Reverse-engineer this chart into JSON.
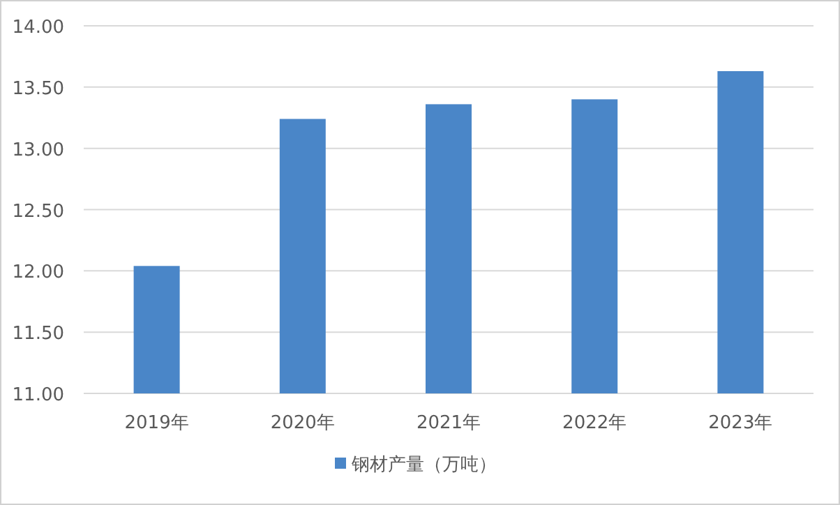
{
  "chart_data": {
    "type": "bar",
    "categories": [
      "2019年",
      "2020年",
      "2021年",
      "2022年",
      "2023年"
    ],
    "series": [
      {
        "name": "钢材产量（万吨）",
        "color": "#4a86c8",
        "values": [
          12.04,
          13.24,
          13.36,
          13.4,
          13.63
        ]
      }
    ],
    "ylim": [
      11,
      14
    ],
    "yticks": [
      {
        "value": 11,
        "label": "11.00"
      },
      {
        "value": 11.5,
        "label": "11.50"
      },
      {
        "value": 12,
        "label": "12.00"
      },
      {
        "value": 12.5,
        "label": "12.50"
      },
      {
        "value": 13,
        "label": "13.00"
      },
      {
        "value": 13.5,
        "label": "13.50"
      },
      {
        "value": 14,
        "label": "14.00"
      }
    ],
    "grid": "y",
    "legend": "bottom"
  }
}
